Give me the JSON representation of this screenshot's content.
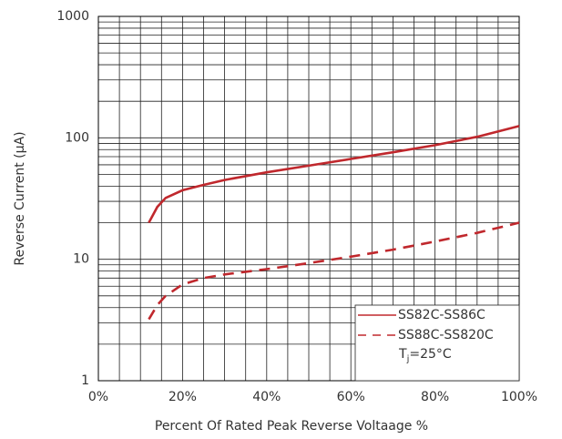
{
  "chart_data": {
    "type": "line",
    "xlabel": "Percent Of Rated Peak Reverse Voltaage %",
    "ylabel": "Reverse Current (μA)",
    "x": [
      12,
      14,
      16,
      20,
      25,
      30,
      40,
      50,
      60,
      70,
      80,
      90,
      100
    ],
    "series": [
      {
        "name": "SS82C-SS86C",
        "color": "#c0282d",
        "style": "solid",
        "values": [
          20,
          27,
          32,
          37,
          41,
          45,
          52,
          59,
          67,
          76,
          87,
          102,
          125
        ]
      },
      {
        "name": "SS88C-SS820C",
        "color": "#c0282d",
        "style": "dashed",
        "values": [
          3.2,
          4.2,
          5,
          6.2,
          7,
          7.5,
          8.3,
          9.3,
          10.5,
          12,
          14,
          16.5,
          20
        ]
      }
    ],
    "annotation": {
      "base": "T",
      "subscript": "j",
      "rest": "=25°C"
    },
    "xlim": [
      0,
      100
    ],
    "xticks": [
      {
        "value": 0,
        "label": "0%"
      },
      {
        "value": 20,
        "label": "20%"
      },
      {
        "value": 40,
        "label": "40%"
      },
      {
        "value": 60,
        "label": "60%"
      },
      {
        "value": 80,
        "label": "80%"
      },
      {
        "value": 100,
        "label": "100%"
      }
    ],
    "ylim": [
      1,
      1000
    ],
    "yticks": [
      1,
      10,
      100,
      1000
    ],
    "log_y": true,
    "grid": true,
    "legend": "lower right"
  }
}
